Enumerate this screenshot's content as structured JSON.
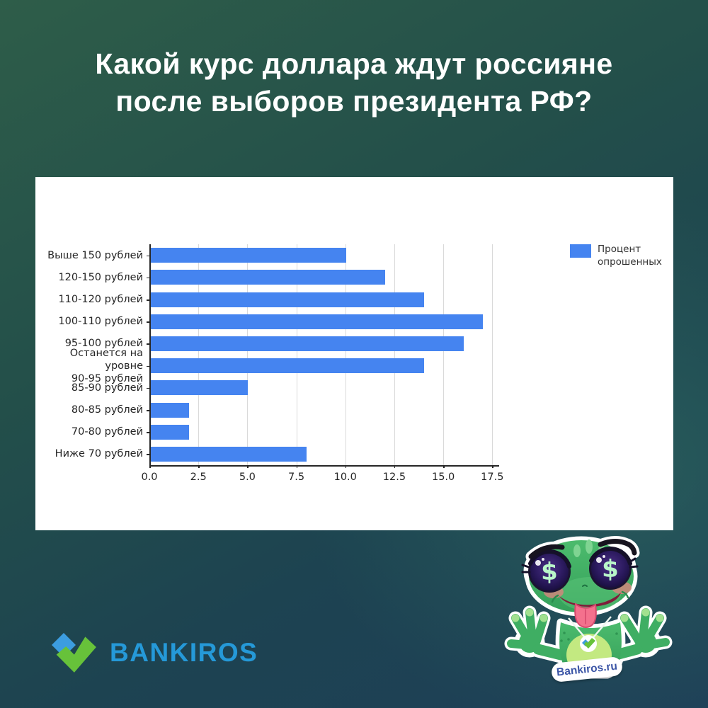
{
  "page": {
    "title_line1": "Какой курс доллара ждут россияне",
    "title_line2": "после выборов президента РФ?"
  },
  "chart_data": {
    "type": "bar",
    "orientation": "horizontal",
    "title": "",
    "xlabel": "",
    "ylabel": "",
    "categories": [
      "Выше 150 рублей",
      "120-150 рублей",
      "110-120 рублей",
      "100-110 рублей",
      "95-100 рублей",
      "Останется на уровне\n90-95 рублей",
      "85-90 рублей",
      "80-85 рублей",
      "70-80 рублей",
      "Ниже 70 рублей"
    ],
    "values": [
      10,
      12,
      14,
      17,
      16,
      14,
      5,
      2,
      2,
      8
    ],
    "series": [
      {
        "name": "Процент опрошенных",
        "values": [
          10,
          12,
          14,
          17,
          16,
          14,
          5,
          2,
          2,
          8
        ]
      }
    ],
    "x_ticks": [
      0,
      2.5,
      5,
      7.5,
      10,
      12.5,
      15,
      17.5
    ],
    "x_tick_labels": [
      "0.0",
      "2.5",
      "5.0",
      "7.5",
      "10.0",
      "12.5",
      "15.0",
      "17.5"
    ],
    "xlim": [
      0,
      17.85
    ],
    "grid": true,
    "legend": {
      "label": "Процент\nопрошенных",
      "position": "top-right"
    },
    "bar_color": "#4584f0",
    "unit": "percent of respondents"
  },
  "brand": {
    "wordmark": "BANKIROS",
    "logo_icon": "blue-diamond-green-check",
    "wordmark_color": "#2599d8",
    "logo_blue": "#3c9de0",
    "logo_green": "#67c23a"
  },
  "mascot": {
    "icon": "frog-with-dollar-eyes-sticker",
    "badge_text": "Bankiros.ru",
    "eye_symbol": "$"
  },
  "colors": {
    "background_top_left": "#2e5d49",
    "background_bottom_right": "#1e3f58",
    "panel": "#ffffff",
    "title_text": "#ffffff",
    "axis_text": "#262626"
  }
}
